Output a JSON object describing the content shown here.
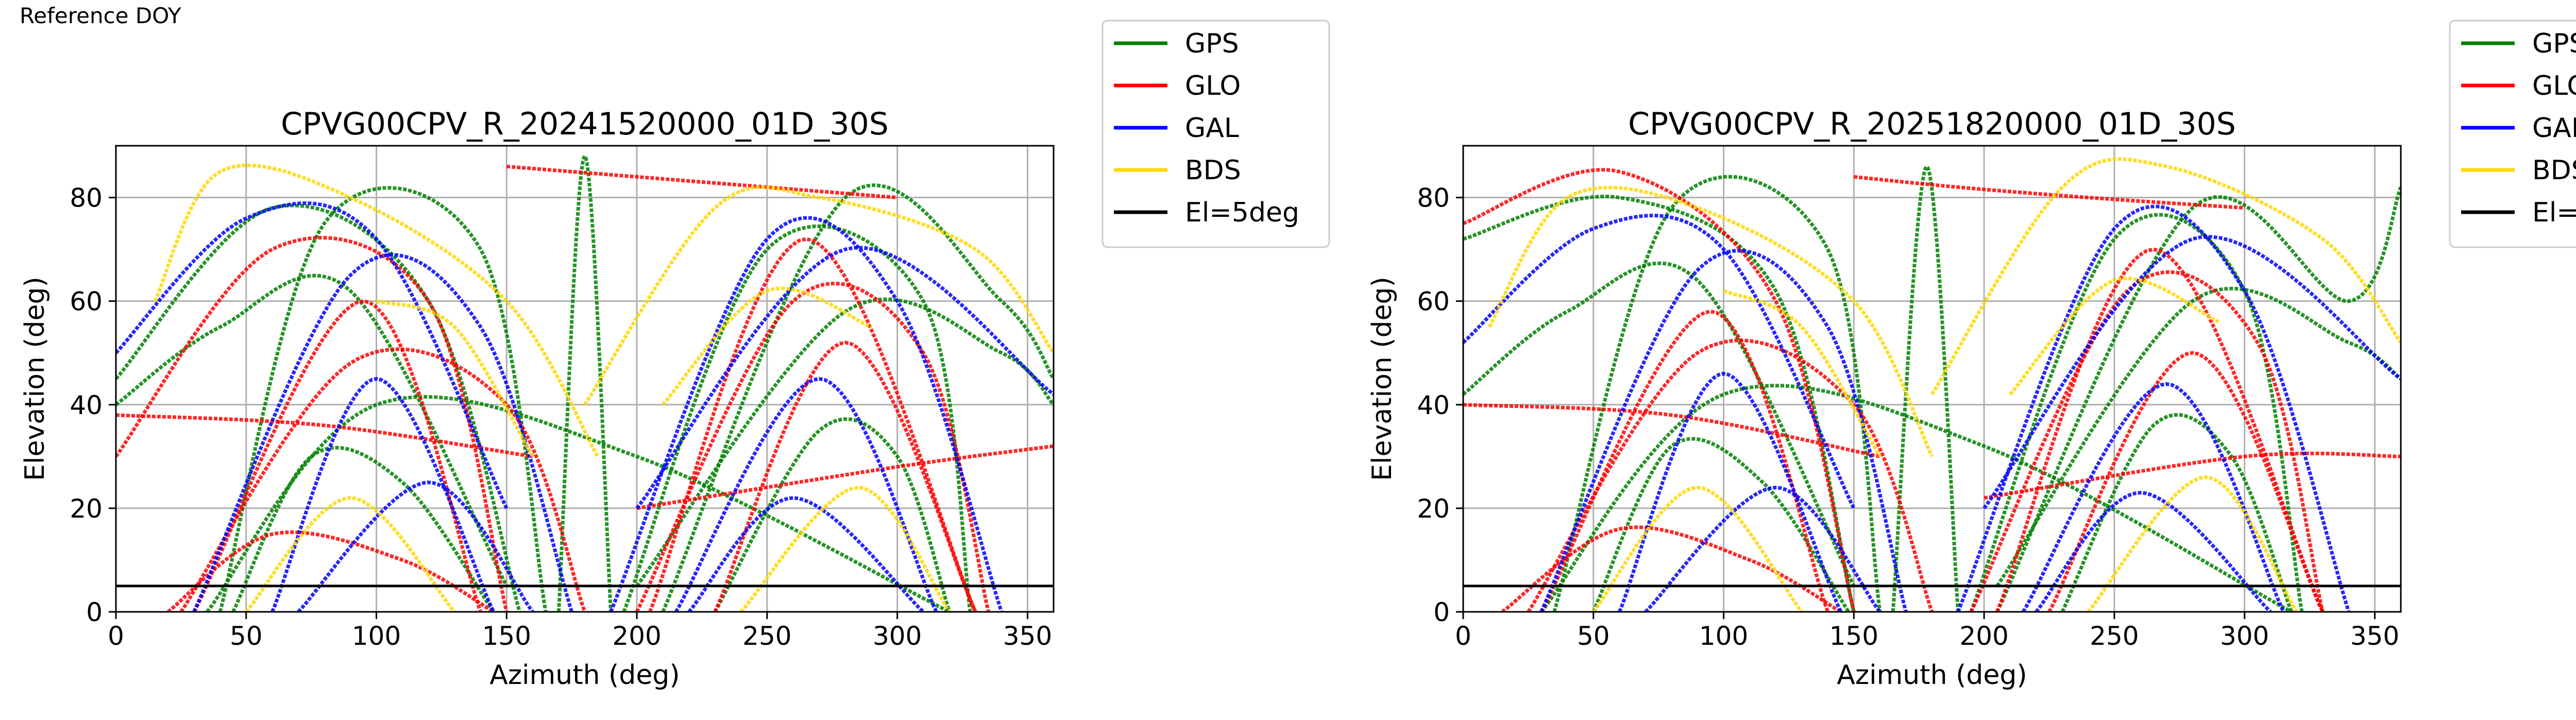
{
  "figure_caption": "Reference DOY",
  "legend_entries": [
    {
      "label": "GPS",
      "color": "#008000"
    },
    {
      "label": "GLO",
      "color": "#ff0000"
    },
    {
      "label": "GAL",
      "color": "#0000ff"
    },
    {
      "label": "BDS",
      "color": "#ffd700"
    },
    {
      "label": "El=5deg",
      "color": "#000000"
    }
  ],
  "chart_data": [
    {
      "type": "scatter",
      "title": "CPVG00CPV_R_20241520000_01D_30S",
      "xlabel": "Azimuth (deg)",
      "ylabel": "Elevation (deg)",
      "xlim": [
        0,
        360
      ],
      "ylim": [
        0,
        90
      ],
      "xticks": [
        0,
        50,
        100,
        150,
        200,
        250,
        300,
        350
      ],
      "yticks": [
        0,
        20,
        40,
        60,
        80
      ],
      "grid": true,
      "legend_position": "outside-right",
      "reference_line": {
        "label": "El=5deg",
        "elevation": 5,
        "color": "#000000"
      },
      "series": [
        {
          "name": "GPS",
          "color": "#008000",
          "tracks": [
            {
              "az": [
                40,
                80,
                140,
                165
              ],
              "el": [
                0,
                75,
                70,
                0
              ]
            },
            {
              "az": [
                195,
                250,
                310,
                328
              ],
              "el": [
                0,
                70,
                60,
                0
              ]
            },
            {
              "az": [
                35,
                100,
                200,
                320
              ],
              "el": [
                0,
                40,
                30,
                0
              ]
            },
            {
              "az": [
                0,
                60,
                120,
                155
              ],
              "el": [
                45,
                78,
                60,
                0
              ]
            },
            {
              "az": [
                210,
                280,
                340,
                360
              ],
              "el": [
                0,
                80,
                60,
                45
              ]
            },
            {
              "az": [
                45,
                75,
                110,
                145
              ],
              "el": [
                0,
                30,
                25,
                0
              ]
            },
            {
              "az": [
                230,
                270,
                300,
                320
              ],
              "el": [
                0,
                35,
                30,
                0
              ]
            },
            {
              "az": [
                170,
                180,
                190
              ],
              "el": [
                0,
                88,
                0
              ]
            },
            {
              "az": [
                0,
                40,
                90,
                150
              ],
              "el": [
                40,
                55,
                62,
                5
              ]
            },
            {
              "az": [
                200,
                280,
                340,
                360
              ],
              "el": [
                5,
                58,
                50,
                40
              ]
            }
          ]
        },
        {
          "name": "GLO",
          "color": "#ff0000",
          "tracks": [
            {
              "az": [
                0,
                60,
                120,
                150
              ],
              "el": [
                30,
                70,
                60,
                0
              ]
            },
            {
              "az": [
                25,
                90,
                150,
                180
              ],
              "el": [
                0,
                48,
                40,
                0
              ]
            },
            {
              "az": [
                200,
                260,
                310,
                335
              ],
              "el": [
                0,
                60,
                50,
                0
              ]
            },
            {
              "az": [
                0,
                80,
                160
              ],
              "el": [
                38,
                36,
                30
              ]
            },
            {
              "az": [
                200,
                300,
                360
              ],
              "el": [
                20,
                28,
                32
              ]
            },
            {
              "az": [
                30,
                95,
                140
              ],
              "el": [
                0,
                60,
                0
              ]
            },
            {
              "az": [
                205,
                265,
                330
              ],
              "el": [
                0,
                72,
                0
              ]
            },
            {
              "az": [
                150,
                200,
                250,
                300
              ],
              "el": [
                86,
                84,
                82,
                80
              ]
            },
            {
              "az": [
                20,
                60,
                110,
                145
              ],
              "el": [
                0,
                15,
                10,
                0
              ]
            },
            {
              "az": [
                230,
                280,
                330
              ],
              "el": [
                0,
                52,
                0
              ]
            }
          ]
        },
        {
          "name": "GAL",
          "color": "#0000ff",
          "tracks": [
            {
              "az": [
                30,
                90,
                140,
                175
              ],
              "el": [
                0,
                65,
                55,
                0
              ]
            },
            {
              "az": [
                190,
                250,
                300,
                340
              ],
              "el": [
                0,
                72,
                60,
                0
              ]
            },
            {
              "az": [
                60,
                100,
                145
              ],
              "el": [
                0,
                45,
                0
              ]
            },
            {
              "az": [
                215,
                270,
                315
              ],
              "el": [
                0,
                45,
                0
              ]
            },
            {
              "az": [
                0,
                50,
                100,
                150
              ],
              "el": [
                50,
                76,
                72,
                20
              ]
            },
            {
              "az": [
                200,
                280,
                360
              ],
              "el": [
                20,
                70,
                42
              ]
            },
            {
              "az": [
                70,
                120,
                160
              ],
              "el": [
                0,
                25,
                0
              ]
            },
            {
              "az": [
                220,
                260,
                310
              ],
              "el": [
                0,
                22,
                0
              ]
            }
          ]
        },
        {
          "name": "BDS",
          "color": "#ffd700",
          "tracks": [
            {
              "az": [
                15,
                40,
                90,
                150,
                185
              ],
              "el": [
                60,
                85,
                80,
                60,
                30
              ]
            },
            {
              "az": [
                180,
                230,
                270,
                330,
                360
              ],
              "el": [
                40,
                78,
                80,
                70,
                50
              ]
            },
            {
              "az": [
                50,
                90,
                130
              ],
              "el": [
                0,
                22,
                0
              ]
            },
            {
              "az": [
                240,
                285,
                320
              ],
              "el": [
                0,
                24,
                0
              ]
            },
            {
              "az": [
                100,
                130,
                160
              ],
              "el": [
                60,
                55,
                30
              ]
            },
            {
              "az": [
                210,
                250,
                290
              ],
              "el": [
                40,
                62,
                55
              ]
            }
          ]
        }
      ]
    },
    {
      "type": "scatter",
      "title": "CPVG00CPV_R_20251820000_01D_30S",
      "xlabel": "Azimuth (deg)",
      "ylabel": "Elevation (deg)",
      "xlim": [
        0,
        360
      ],
      "ylim": [
        0,
        90
      ],
      "xticks": [
        0,
        50,
        100,
        150,
        200,
        250,
        300,
        350
      ],
      "yticks": [
        0,
        20,
        40,
        60,
        80
      ],
      "grid": true,
      "legend_position": "outside-right",
      "reference_line": {
        "label": "El=5deg",
        "elevation": 5,
        "color": "#000000"
      },
      "series": [
        {
          "name": "GPS",
          "color": "#008000",
          "tracks": [
            {
              "az": [
                35,
                80,
                140,
                160
              ],
              "el": [
                0,
                78,
                70,
                0
              ]
            },
            {
              "az": [
                195,
                250,
                300,
                322
              ],
              "el": [
                0,
                72,
                62,
                0
              ]
            },
            {
              "az": [
                30,
                100,
                200,
                318
              ],
              "el": [
                0,
                42,
                32,
                0
              ]
            },
            {
              "az": [
                0,
                60,
                120,
                150
              ],
              "el": [
                72,
                80,
                62,
                0
              ]
            },
            {
              "az": [
                205,
                280,
                340,
                360
              ],
              "el": [
                0,
                78,
                60,
                82
              ]
            },
            {
              "az": [
                50,
                80,
                115,
                148
              ],
              "el": [
                0,
                32,
                25,
                0
              ]
            },
            {
              "az": [
                230,
                265,
                295,
                318
              ],
              "el": [
                0,
                36,
                30,
                0
              ]
            },
            {
              "az": [
                165,
                178,
                190
              ],
              "el": [
                0,
                86,
                0
              ]
            },
            {
              "az": [
                0,
                40,
                90,
                150
              ],
              "el": [
                42,
                58,
                64,
                5
              ]
            },
            {
              "az": [
                205,
                280,
                340,
                360
              ],
              "el": [
                5,
                60,
                52,
                45
              ]
            }
          ]
        },
        {
          "name": "GLO",
          "color": "#ff0000",
          "tracks": [
            {
              "az": [
                0,
                60,
                120,
                150
              ],
              "el": [
                75,
                85,
                60,
                0
              ]
            },
            {
              "az": [
                25,
                90,
                150,
                180
              ],
              "el": [
                0,
                50,
                40,
                0
              ]
            },
            {
              "az": [
                195,
                255,
                305,
                330
              ],
              "el": [
                0,
                62,
                52,
                0
              ]
            },
            {
              "az": [
                0,
                80,
                160
              ],
              "el": [
                40,
                38,
                30
              ]
            },
            {
              "az": [
                200,
                300,
                360
              ],
              "el": [
                22,
                30,
                30
              ]
            },
            {
              "az": [
                30,
                95,
                140
              ],
              "el": [
                0,
                58,
                0
              ]
            },
            {
              "az": [
                205,
                265,
                330
              ],
              "el": [
                0,
                70,
                0
              ]
            },
            {
              "az": [
                150,
                190,
                240,
                300
              ],
              "el": [
                84,
                82,
                80,
                78
              ]
            },
            {
              "az": [
                15,
                60,
                110,
                145
              ],
              "el": [
                0,
                16,
                10,
                0
              ]
            },
            {
              "az": [
                225,
                280,
                330
              ],
              "el": [
                0,
                50,
                0
              ]
            }
          ]
        },
        {
          "name": "GAL",
          "color": "#0000ff",
          "tracks": [
            {
              "az": [
                30,
                90,
                140,
                170
              ],
              "el": [
                0,
                66,
                55,
                0
              ]
            },
            {
              "az": [
                190,
                250,
                300,
                340
              ],
              "el": [
                0,
                74,
                62,
                0
              ]
            },
            {
              "az": [
                60,
                100,
                145
              ],
              "el": [
                0,
                46,
                0
              ]
            },
            {
              "az": [
                215,
                270,
                315
              ],
              "el": [
                0,
                44,
                0
              ]
            },
            {
              "az": [
                0,
                50,
                100,
                150
              ],
              "el": [
                52,
                74,
                70,
                20
              ]
            },
            {
              "az": [
                200,
                280,
                360
              ],
              "el": [
                20,
                72,
                45
              ]
            },
            {
              "az": [
                70,
                120,
                160
              ],
              "el": [
                0,
                24,
                0
              ]
            },
            {
              "az": [
                220,
                260,
                310
              ],
              "el": [
                0,
                23,
                0
              ]
            }
          ]
        },
        {
          "name": "BDS",
          "color": "#ffd700",
          "tracks": [
            {
              "az": [
                10,
                40,
                90,
                150,
                180
              ],
              "el": [
                55,
                80,
                78,
                60,
                30
              ]
            },
            {
              "az": [
                180,
                230,
                270,
                330,
                360
              ],
              "el": [
                42,
                82,
                86,
                72,
                52
              ]
            },
            {
              "az": [
                50,
                90,
                130
              ],
              "el": [
                0,
                24,
                0
              ]
            },
            {
              "az": [
                240,
                285,
                320
              ],
              "el": [
                0,
                26,
                0
              ]
            },
            {
              "az": [
                100,
                130,
                160
              ],
              "el": [
                62,
                55,
                30
              ]
            },
            {
              "az": [
                210,
                250,
                290
              ],
              "el": [
                42,
                64,
                56
              ]
            }
          ]
        }
      ]
    }
  ]
}
